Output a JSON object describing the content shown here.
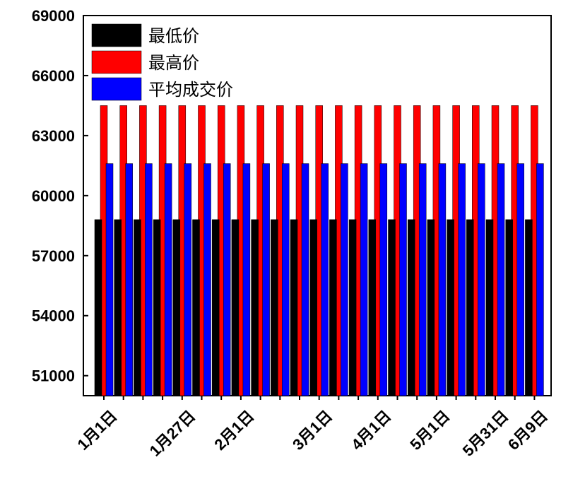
{
  "chart_data": {
    "type": "bar",
    "categories": [
      "1月1日",
      null,
      null,
      null,
      "1月27日",
      null,
      null,
      "2月1日",
      null,
      null,
      null,
      "3月1日",
      null,
      null,
      "4月1日",
      null,
      null,
      "5月1日",
      null,
      null,
      "5月31日",
      null,
      "6月9日"
    ],
    "series": [
      {
        "name": "最低价",
        "color": "#000000",
        "values": [
          58800,
          58800,
          58800,
          58800,
          58800,
          58800,
          58800,
          58800,
          58800,
          58800,
          58800,
          58800,
          58800,
          58800,
          58800,
          58800,
          58800,
          58800,
          58800,
          58800,
          58800,
          58800,
          58800
        ]
      },
      {
        "name": "最高价",
        "color": "#ff0000",
        "values": [
          64500,
          64500,
          64500,
          64500,
          64500,
          64500,
          64500,
          64500,
          64500,
          64500,
          64500,
          64500,
          64500,
          64500,
          64500,
          64500,
          64500,
          64500,
          64500,
          64500,
          64500,
          64500,
          64500
        ]
      },
      {
        "name": "平均成交价",
        "color": "#0000ff",
        "values": [
          61600,
          61600,
          61600,
          61600,
          61600,
          61600,
          61600,
          61600,
          61600,
          61600,
          61600,
          61600,
          61600,
          61600,
          61600,
          61600,
          61600,
          61600,
          61600,
          61600,
          61600,
          61600,
          61600
        ]
      }
    ],
    "ylim": [
      50000,
      69000
    ],
    "yticks": [
      51000,
      54000,
      57000,
      60000,
      63000,
      66000,
      69000
    ]
  }
}
